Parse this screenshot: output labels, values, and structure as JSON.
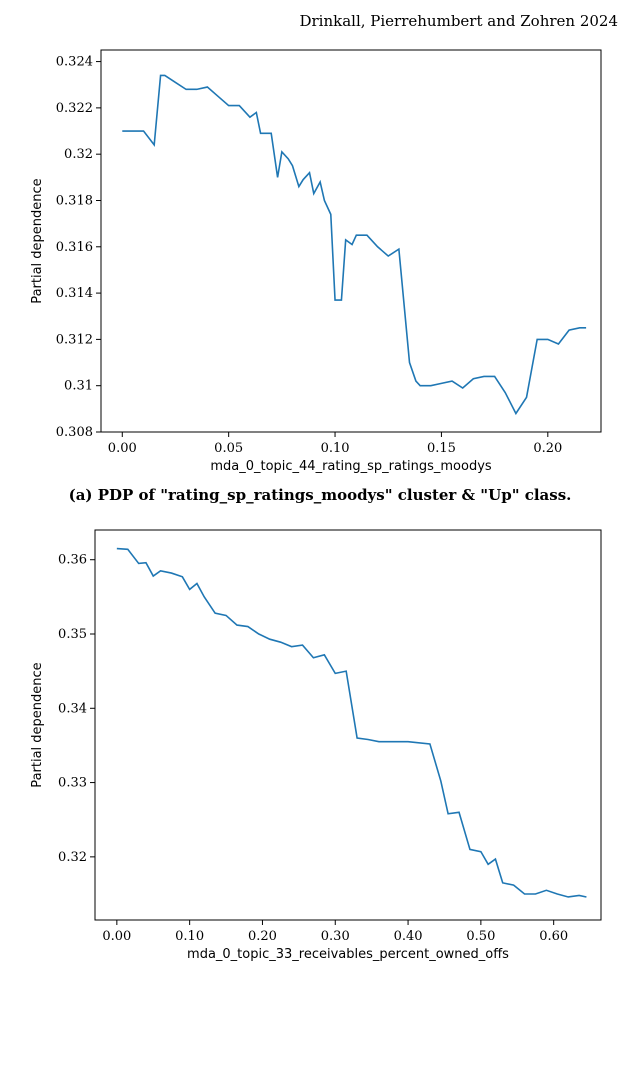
{
  "header_citation": "Drinkall, Pierrehumbert and Zohren 2024",
  "chart_a": {
    "type": "line",
    "xlabel": "mda_0_topic_44_rating_sp_ratings_moodys",
    "ylabel": "Partial dependence",
    "label_fontsize": 13,
    "tick_fontsize": 13,
    "line_color": "#1f77b4",
    "background_color": "#ffffff",
    "border_color": "#000000",
    "xlim": [
      -0.01,
      0.225
    ],
    "ylim": [
      0.308,
      0.3245
    ],
    "xticks": [
      0.0,
      0.05,
      0.1,
      0.15,
      0.2
    ],
    "yticks": [
      0.308,
      0.31,
      0.312,
      0.314,
      0.316,
      0.318,
      0.32,
      0.322,
      0.324
    ],
    "x": [
      0.0,
      0.01,
      0.015,
      0.018,
      0.02,
      0.025,
      0.03,
      0.035,
      0.04,
      0.045,
      0.05,
      0.055,
      0.06,
      0.063,
      0.065,
      0.068,
      0.07,
      0.073,
      0.075,
      0.078,
      0.08,
      0.083,
      0.085,
      0.088,
      0.09,
      0.093,
      0.095,
      0.098,
      0.1,
      0.103,
      0.105,
      0.108,
      0.11,
      0.115,
      0.12,
      0.125,
      0.13,
      0.135,
      0.138,
      0.14,
      0.145,
      0.15,
      0.155,
      0.16,
      0.165,
      0.17,
      0.175,
      0.18,
      0.185,
      0.19,
      0.195,
      0.2,
      0.205,
      0.21,
      0.215,
      0.218
    ],
    "y": [
      0.321,
      0.321,
      0.3204,
      0.3234,
      0.3234,
      0.3231,
      0.3228,
      0.3228,
      0.3229,
      0.3225,
      0.3221,
      0.3221,
      0.3216,
      0.3218,
      0.3209,
      0.3209,
      0.3209,
      0.319,
      0.3201,
      0.3198,
      0.3195,
      0.3186,
      0.3189,
      0.3192,
      0.3183,
      0.3188,
      0.318,
      0.3174,
      0.3137,
      0.3137,
      0.3163,
      0.3161,
      0.3165,
      0.3165,
      0.316,
      0.3156,
      0.3159,
      0.311,
      0.3102,
      0.31,
      0.31,
      0.3101,
      0.3102,
      0.3099,
      0.3103,
      0.3104,
      0.3104,
      0.3097,
      0.3088,
      0.3095,
      0.312,
      0.312,
      0.3118,
      0.3124,
      0.3125,
      0.3125
    ],
    "caption": "(a) PDP of \"rating_sp_ratings_moodys\" cluster & \"Up\" class."
  },
  "chart_b": {
    "type": "line",
    "xlabel": "mda_0_topic_33_receivables_percent_owned_offs",
    "ylabel": "Partial dependence",
    "label_fontsize": 13,
    "tick_fontsize": 13,
    "line_color": "#1f77b4",
    "background_color": "#ffffff",
    "border_color": "#000000",
    "xlim": [
      -0.03,
      0.665
    ],
    "ylim": [
      0.3115,
      0.364
    ],
    "xticks": [
      0.0,
      0.1,
      0.2,
      0.3,
      0.4,
      0.5,
      0.6
    ],
    "yticks": [
      0.32,
      0.33,
      0.34,
      0.35,
      0.36
    ],
    "x": [
      0.0,
      0.015,
      0.03,
      0.04,
      0.05,
      0.06,
      0.075,
      0.09,
      0.1,
      0.11,
      0.12,
      0.135,
      0.15,
      0.165,
      0.18,
      0.195,
      0.21,
      0.225,
      0.24,
      0.255,
      0.27,
      0.285,
      0.3,
      0.315,
      0.33,
      0.345,
      0.36,
      0.375,
      0.4,
      0.43,
      0.445,
      0.455,
      0.47,
      0.485,
      0.5,
      0.51,
      0.52,
      0.53,
      0.545,
      0.56,
      0.575,
      0.59,
      0.605,
      0.62,
      0.635,
      0.645
    ],
    "y": [
      0.3615,
      0.3614,
      0.3595,
      0.3596,
      0.3578,
      0.3585,
      0.3582,
      0.3577,
      0.356,
      0.3568,
      0.355,
      0.3528,
      0.3525,
      0.3512,
      0.351,
      0.35,
      0.3493,
      0.3489,
      0.3483,
      0.3485,
      0.3468,
      0.3472,
      0.3447,
      0.345,
      0.336,
      0.3358,
      0.3355,
      0.3355,
      0.3355,
      0.3352,
      0.3302,
      0.3258,
      0.326,
      0.321,
      0.3207,
      0.319,
      0.3197,
      0.3165,
      0.3162,
      0.315,
      0.315,
      0.3155,
      0.315,
      0.3146,
      0.3148,
      0.3146
    ]
  }
}
